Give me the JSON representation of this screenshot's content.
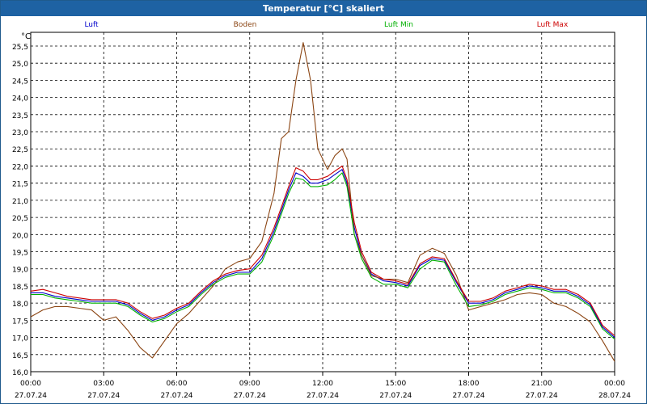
{
  "window": {
    "title": "Temperatur [°C] skaliert"
  },
  "chart_data": {
    "type": "line",
    "title": "Temperatur [°C] skaliert",
    "ylabel": "°C",
    "xlabel": "",
    "ylim": [
      16.0,
      25.9
    ],
    "xlim": [
      0,
      24
    ],
    "grid": true,
    "yticks": [
      "16,0",
      "16,5",
      "17,0",
      "17,5",
      "18,0",
      "18,5",
      "19,0",
      "19,5",
      "20,0",
      "20,5",
      "21,0",
      "21,5",
      "22,0",
      "22,5",
      "23,0",
      "23,5",
      "24,0",
      "24,5",
      "25,0",
      "25,5"
    ],
    "xticks": [
      {
        "time": "00:00",
        "date": "27.07.24",
        "x": 0
      },
      {
        "time": "03:00",
        "date": "27.07.24",
        "x": 3
      },
      {
        "time": "06:00",
        "date": "27.07.24",
        "x": 6
      },
      {
        "time": "09:00",
        "date": "27.07.24",
        "x": 9
      },
      {
        "time": "12:00",
        "date": "27.07.24",
        "x": 12
      },
      {
        "time": "15:00",
        "date": "27.07.24",
        "x": 15
      },
      {
        "time": "18:00",
        "date": "27.07.24",
        "x": 18
      },
      {
        "time": "21:00",
        "date": "27.07.24",
        "x": 21
      },
      {
        "time": "00:00",
        "date": "28.07.24",
        "x": 24
      }
    ],
    "legend": [
      {
        "name": "Luft",
        "color": "#0000cc"
      },
      {
        "name": "Boden",
        "color": "#8b4513"
      },
      {
        "name": "Luft Min",
        "color": "#00b000"
      },
      {
        "name": "Luft Max",
        "color": "#cc0000"
      }
    ],
    "series": [
      {
        "name": "Luft",
        "color": "#0000cc",
        "x": [
          0,
          0.5,
          1,
          1.5,
          2,
          2.5,
          3,
          3.5,
          4,
          4.5,
          5,
          5.5,
          6,
          6.5,
          7,
          7.5,
          8,
          8.5,
          9,
          9.5,
          10,
          10.3,
          10.6,
          10.9,
          11.2,
          11.5,
          11.8,
          12.2,
          12.5,
          12.8,
          13,
          13.3,
          13.6,
          14,
          14.5,
          15,
          15.5,
          16,
          16.5,
          17,
          17.5,
          18,
          18.5,
          19,
          19.5,
          20,
          20.5,
          21,
          21.5,
          22,
          22.5,
          23,
          23.5,
          24
        ],
        "y": [
          18.3,
          18.3,
          18.2,
          18.15,
          18.1,
          18.05,
          18.05,
          18.05,
          17.95,
          17.7,
          17.5,
          17.6,
          17.8,
          17.95,
          18.3,
          18.6,
          18.8,
          18.9,
          18.9,
          19.3,
          20.1,
          20.7,
          21.3,
          21.8,
          21.7,
          21.5,
          21.5,
          21.6,
          21.75,
          21.9,
          21.5,
          20.2,
          19.4,
          18.85,
          18.65,
          18.6,
          18.5,
          19.1,
          19.3,
          19.25,
          18.6,
          18.0,
          18.0,
          18.1,
          18.3,
          18.4,
          18.5,
          18.45,
          18.35,
          18.35,
          18.2,
          17.95,
          17.3,
          17.0
        ]
      },
      {
        "name": "Boden",
        "color": "#8b4513",
        "x": [
          0,
          0.5,
          1,
          1.5,
          2,
          2.5,
          3,
          3.5,
          4,
          4.5,
          5,
          5.5,
          6,
          6.5,
          7,
          7.5,
          8,
          8.5,
          9,
          9.5,
          10,
          10.3,
          10.6,
          10.9,
          11.2,
          11.5,
          11.8,
          12.2,
          12.5,
          12.8,
          13,
          13.3,
          13.6,
          14,
          14.5,
          15,
          15.5,
          16,
          16.5,
          17,
          17.5,
          18,
          18.5,
          19,
          19.5,
          20,
          20.5,
          21,
          21.5,
          22,
          22.5,
          23,
          23.5,
          24
        ],
        "y": [
          17.6,
          17.8,
          17.9,
          17.9,
          17.85,
          17.8,
          17.5,
          17.6,
          17.2,
          16.7,
          16.4,
          16.9,
          17.4,
          17.7,
          18.1,
          18.5,
          19.0,
          19.2,
          19.3,
          19.8,
          21.2,
          22.8,
          23.0,
          24.5,
          25.6,
          24.5,
          22.5,
          21.9,
          22.3,
          22.5,
          22.2,
          20.0,
          19.4,
          18.8,
          18.7,
          18.7,
          18.6,
          19.4,
          19.6,
          19.45,
          18.8,
          17.8,
          17.9,
          18.0,
          18.1,
          18.25,
          18.3,
          18.25,
          18.0,
          17.9,
          17.7,
          17.45,
          16.9,
          16.3
        ]
      },
      {
        "name": "Luft Min",
        "color": "#00b000",
        "x": [
          0,
          0.5,
          1,
          1.5,
          2,
          2.5,
          3,
          3.5,
          4,
          4.5,
          5,
          5.5,
          6,
          6.5,
          7,
          7.5,
          8,
          8.5,
          9,
          9.5,
          10,
          10.3,
          10.6,
          10.9,
          11.2,
          11.5,
          11.8,
          12.2,
          12.5,
          12.8,
          13,
          13.3,
          13.6,
          14,
          14.5,
          15,
          15.5,
          16,
          16.5,
          17,
          17.5,
          18,
          18.5,
          19,
          19.5,
          20,
          20.5,
          21,
          21.5,
          22,
          22.5,
          23,
          23.5,
          24
        ],
        "y": [
          18.25,
          18.25,
          18.15,
          18.1,
          18.05,
          18.0,
          18.0,
          18.0,
          17.9,
          17.65,
          17.45,
          17.55,
          17.75,
          17.9,
          18.25,
          18.55,
          18.75,
          18.85,
          18.85,
          19.2,
          20.0,
          20.6,
          21.2,
          21.65,
          21.6,
          21.4,
          21.4,
          21.45,
          21.6,
          21.8,
          21.4,
          20.0,
          19.3,
          18.75,
          18.55,
          18.55,
          18.45,
          19.0,
          19.25,
          19.2,
          18.5,
          17.9,
          17.95,
          18.05,
          18.25,
          18.35,
          18.45,
          18.4,
          18.3,
          18.3,
          18.15,
          17.9,
          17.25,
          16.95
        ]
      },
      {
        "name": "Luft Max",
        "color": "#cc0000",
        "x": [
          0,
          0.5,
          1,
          1.5,
          2,
          2.5,
          3,
          3.5,
          4,
          4.5,
          5,
          5.5,
          6,
          6.5,
          7,
          7.5,
          8,
          8.5,
          9,
          9.5,
          10,
          10.3,
          10.6,
          10.9,
          11.2,
          11.5,
          11.8,
          12.2,
          12.5,
          12.8,
          13,
          13.3,
          13.6,
          14,
          14.5,
          15,
          15.5,
          16,
          16.5,
          17,
          17.5,
          18,
          18.5,
          19,
          19.5,
          20,
          20.5,
          21,
          21.5,
          22,
          22.5,
          23,
          23.5,
          24
        ],
        "y": [
          18.35,
          18.4,
          18.3,
          18.2,
          18.15,
          18.1,
          18.1,
          18.1,
          18.0,
          17.75,
          17.55,
          17.65,
          17.85,
          18.0,
          18.35,
          18.65,
          18.85,
          18.95,
          19.0,
          19.4,
          20.2,
          20.8,
          21.4,
          21.95,
          21.85,
          21.6,
          21.6,
          21.7,
          21.85,
          22.0,
          21.6,
          20.35,
          19.5,
          18.9,
          18.7,
          18.65,
          18.55,
          19.15,
          19.35,
          19.3,
          18.65,
          18.05,
          18.05,
          18.15,
          18.35,
          18.45,
          18.55,
          18.5,
          18.4,
          18.4,
          18.25,
          18.0,
          17.35,
          17.05
        ]
      }
    ]
  }
}
